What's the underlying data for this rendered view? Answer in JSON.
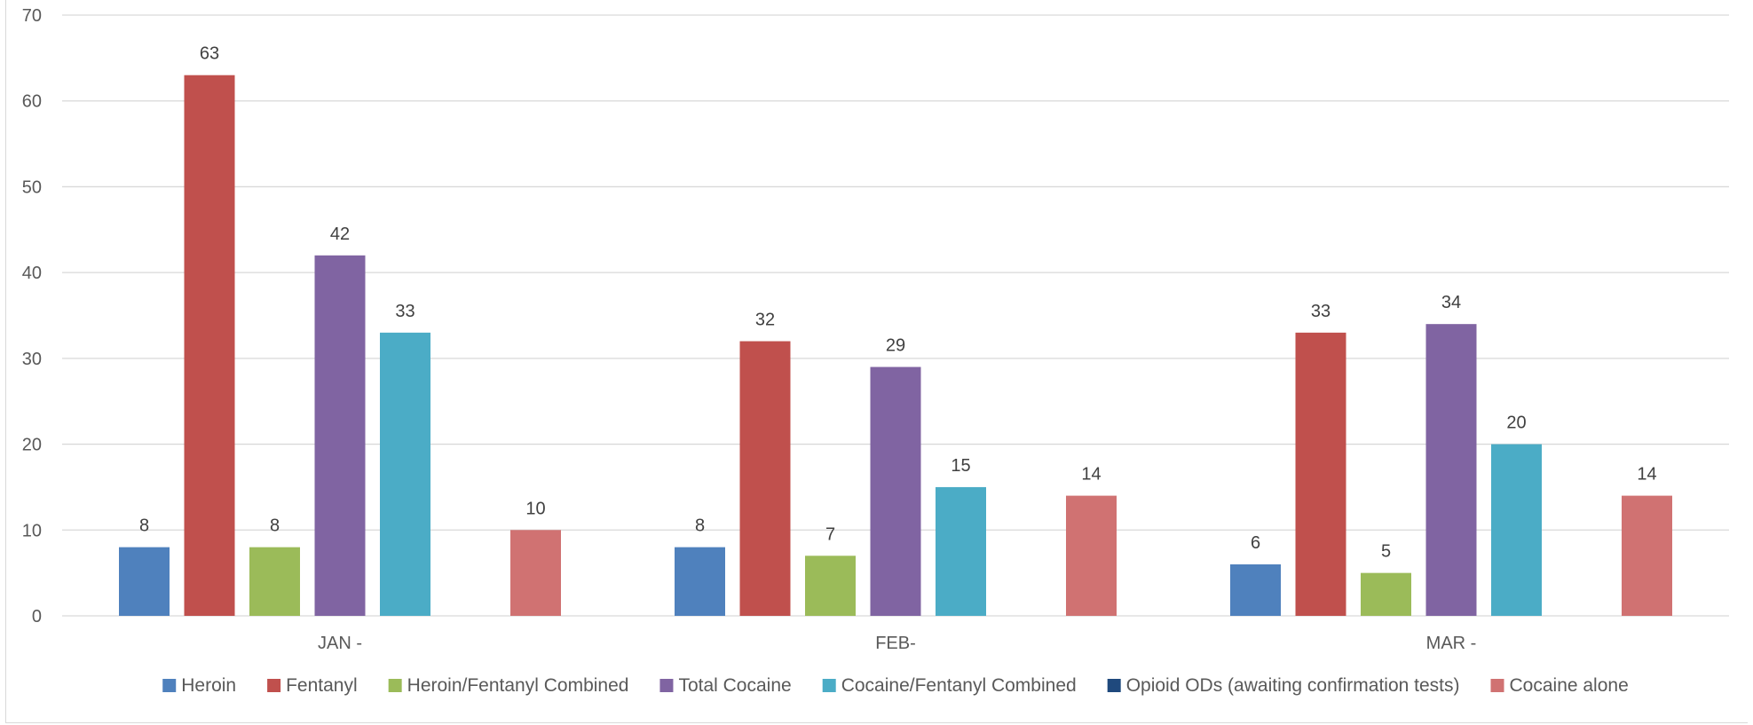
{
  "chart_data": {
    "type": "bar",
    "categories": [
      "JAN -",
      "FEB-",
      "MAR -"
    ],
    "series": [
      {
        "name": "Heroin",
        "color": "#4F81BD",
        "values": [
          8,
          8,
          6
        ]
      },
      {
        "name": "Fentanyl",
        "color": "#C0504D",
        "values": [
          63,
          32,
          33
        ]
      },
      {
        "name": "Heroin/Fentanyl Combined",
        "color": "#9BBB59",
        "values": [
          8,
          7,
          5
        ]
      },
      {
        "name": "Total Cocaine",
        "color": "#8064A2",
        "values": [
          42,
          29,
          34
        ]
      },
      {
        "name": "Cocaine/Fentanyl Combined",
        "color": "#4BACC6",
        "values": [
          33,
          15,
          20
        ]
      },
      {
        "name": "Opioid ODs (awaiting confirmation tests)",
        "color": "#1F497D",
        "values": [
          null,
          null,
          null
        ]
      },
      {
        "name": "Cocaine alone",
        "color": "#D07272",
        "values": [
          10,
          14,
          14
        ]
      }
    ],
    "ylim": [
      0,
      70
    ],
    "y_ticks": [
      0,
      10,
      20,
      30,
      40,
      50,
      60,
      70
    ],
    "grid": true,
    "legend_position": "bottom",
    "data_labels": true
  }
}
